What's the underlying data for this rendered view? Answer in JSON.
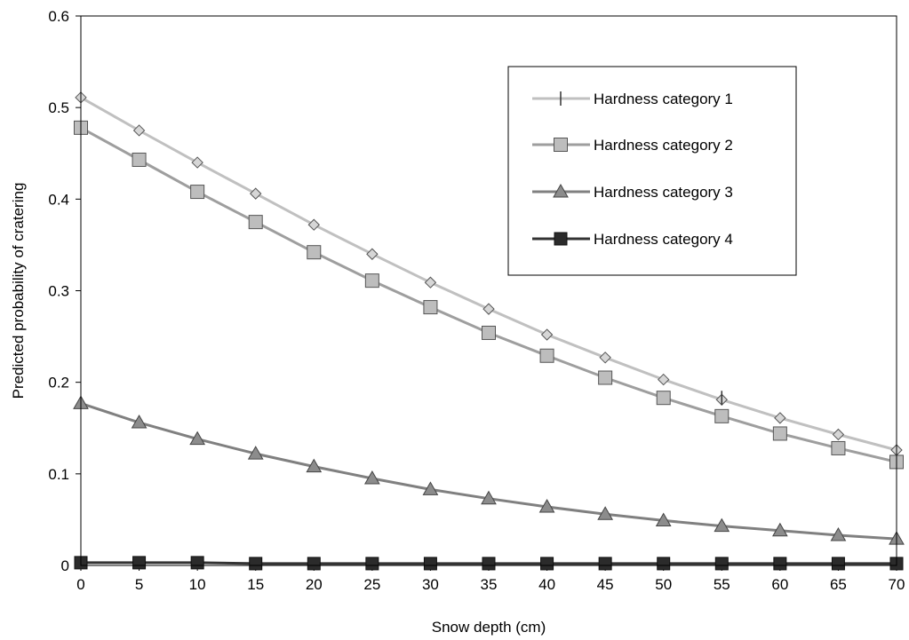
{
  "chart_data": {
    "type": "line",
    "title": "",
    "xlabel": "Snow depth (cm)",
    "ylabel": "Predicted probability of cratering",
    "xlim": [
      0,
      70
    ],
    "ylim": [
      0,
      0.6
    ],
    "grid": false,
    "legend_position": "top-right",
    "x": [
      0,
      5,
      10,
      15,
      20,
      25,
      30,
      35,
      40,
      45,
      50,
      55,
      60,
      65,
      70
    ],
    "x_tick_labels": [
      "0",
      "5",
      "10",
      "15",
      "20",
      "25",
      "30",
      "35",
      "40",
      "45",
      "50",
      "55",
      "60",
      "65",
      "70"
    ],
    "y_tick_labels": [
      "0",
      "0.1",
      "0.2",
      "0.3",
      "0.4",
      "0.5",
      "0.6"
    ],
    "y_ticks": [
      0,
      0.1,
      0.2,
      0.3,
      0.4,
      0.5,
      0.6
    ],
    "series": [
      {
        "name": "Hardness category 1",
        "color": "#c0c0c0",
        "values": [
          0.511,
          0.475,
          0.44,
          0.406,
          0.372,
          0.34,
          0.309,
          0.28,
          0.252,
          0.227,
          0.203,
          0.181,
          0.161,
          0.143,
          0.126
        ],
        "marker": "diamond"
      },
      {
        "name": "Hardness category 2",
        "color": "#9e9e9e",
        "values": [
          0.478,
          0.443,
          0.408,
          0.375,
          0.342,
          0.311,
          0.282,
          0.254,
          0.229,
          0.205,
          0.183,
          0.163,
          0.144,
          0.128,
          0.113
        ],
        "marker": "square"
      },
      {
        "name": "Hardness category 3",
        "color": "#808080",
        "values": [
          0.177,
          0.156,
          0.138,
          0.122,
          0.108,
          0.095,
          0.083,
          0.073,
          0.064,
          0.056,
          0.049,
          0.043,
          0.038,
          0.033,
          0.029
        ],
        "marker": "triangle"
      },
      {
        "name": "Hardness category 4",
        "color": "#333333",
        "values": [
          0.003,
          0.003,
          0.003,
          0.002,
          0.002,
          0.002,
          0.002,
          0.002,
          0.002,
          0.002,
          0.002,
          0.002,
          0.002,
          0.002,
          0.002
        ],
        "marker": "square"
      }
    ]
  }
}
